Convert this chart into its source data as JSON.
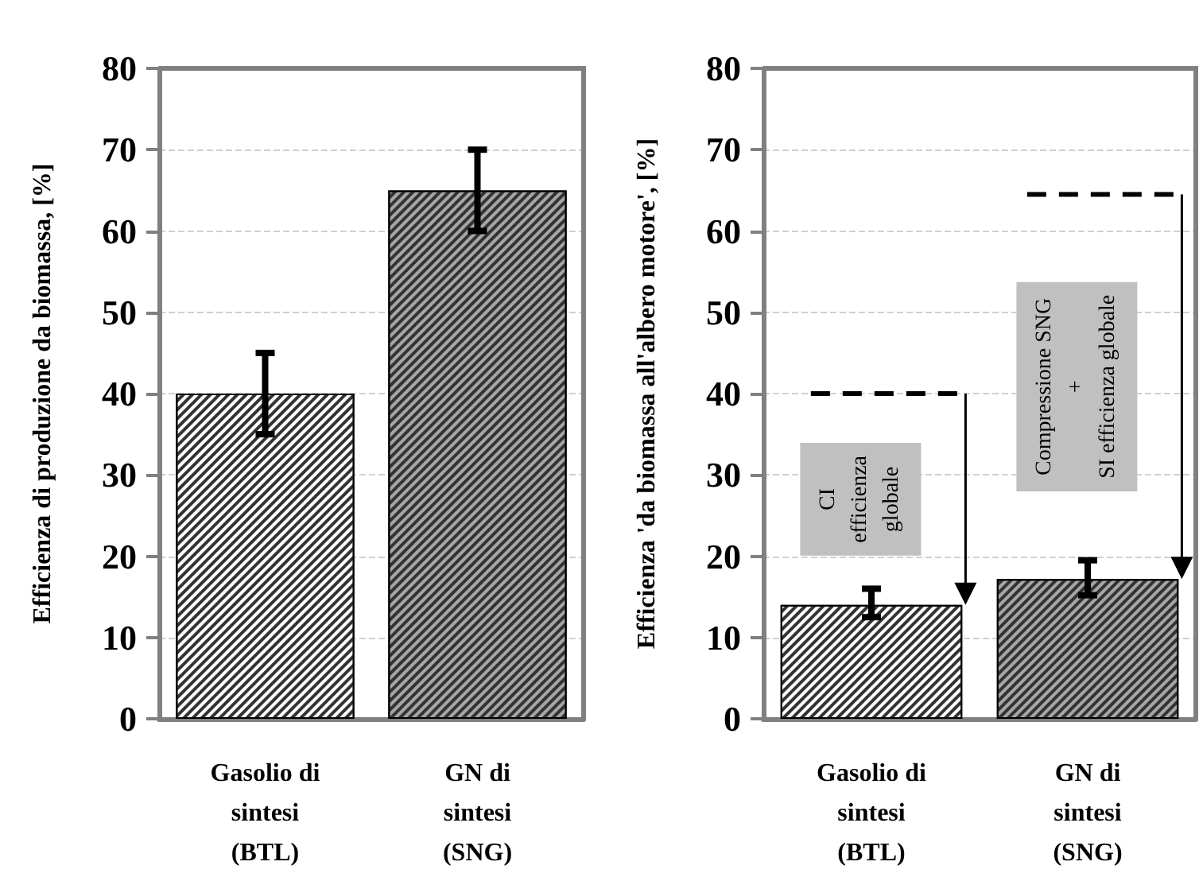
{
  "chart_data": [
    {
      "type": "bar",
      "ylabel": "Efficienza di produzione da biomassa, [%]",
      "categories": [
        "Gasolio di\nsintesi\n(BTL)",
        "GN di\nsintesi\n(SNG)"
      ],
      "values": [
        40,
        65
      ],
      "colors": [
        "#ffffff",
        "#a6a6a6"
      ],
      "errors": [
        5,
        5
      ],
      "ylim": [
        0,
        80
      ],
      "yticks": [
        0,
        10,
        20,
        30,
        40,
        50,
        60,
        70,
        80
      ],
      "grid": "y"
    },
    {
      "type": "bar",
      "ylabel": "Efficienza 'da biomassa all'albero motore', [%]",
      "categories": [
        "Gasolio di\nsintesi\n(BTL)",
        "GN di\nsintesi\n(SNG)"
      ],
      "values": [
        14,
        17.2
      ],
      "colors": [
        "#ffffff",
        "#a6a6a6"
      ],
      "errors": [
        [
          12.5,
          16
        ],
        [
          15.2,
          19.5
        ]
      ],
      "ylim": [
        0,
        80
      ],
      "yticks": [
        0,
        10,
        20,
        30,
        40,
        50,
        60,
        70,
        80
      ],
      "grid": "y",
      "ref_lines": [
        {
          "axis": "y",
          "value": 40,
          "color": "#000000",
          "line_style": "dashed"
        },
        {
          "axis": "y",
          "value": 64.5,
          "color": "#000000",
          "line_style": "dashed"
        }
      ],
      "annotations": [
        "CI\nefficienza\nglobale",
        "Compressione SNG\n+\nSI efficienza globale"
      ]
    }
  ]
}
